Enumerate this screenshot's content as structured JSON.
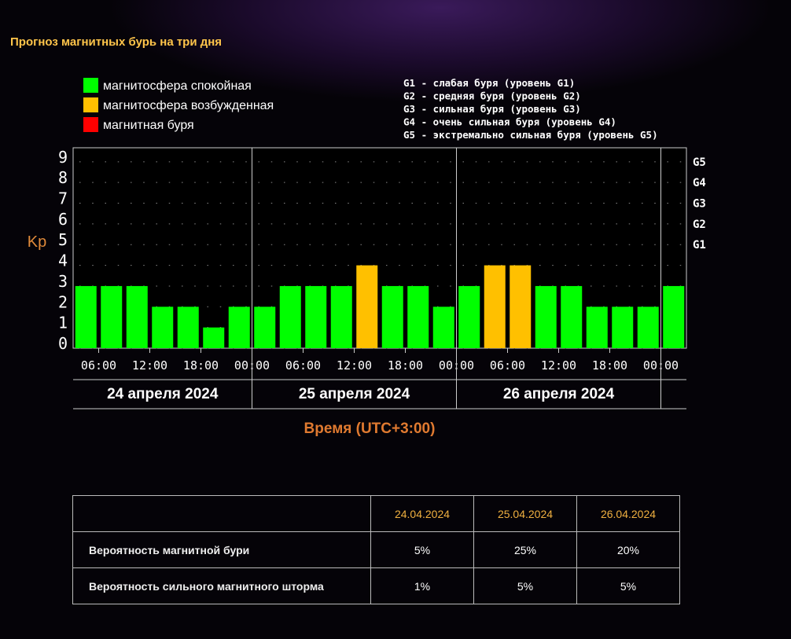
{
  "title": "Прогноз магнитных бурь на три дня",
  "chart_data": {
    "type": "bar",
    "legend": [
      {
        "label": "магнитосфера спокойная",
        "color": "#00ff00"
      },
      {
        "label": "магнитосфера возбужденная",
        "color": "#ffc000"
      },
      {
        "label": "магнитная буря",
        "color": "#ff0000"
      }
    ],
    "g_legend": [
      "G1 - слабая буря (уровень G1)",
      "G2 - средняя буря (уровень G2)",
      "G3 - сильная буря (уровень G3)",
      "G4 - очень сильная буря (уровень G4)",
      "G5 - экстремально сильная буря (уровень G5)"
    ],
    "y_label": "Kp",
    "x_label": "Время (UTC+3:00)",
    "categories": [
      null,
      null,
      null,
      null,
      null,
      null,
      null,
      null,
      null,
      null,
      null,
      null,
      null,
      null,
      null,
      null,
      null,
      null,
      null,
      null,
      null,
      null,
      null,
      null
    ],
    "values": [
      3,
      3,
      3,
      2,
      2,
      1,
      2,
      2,
      3,
      3,
      3,
      4,
      3,
      3,
      2,
      3,
      4,
      4,
      3,
      3,
      2,
      2,
      2,
      3
    ],
    "bar_colors": [
      "#00ff00",
      "#00ff00",
      "#00ff00",
      "#00ff00",
      "#00ff00",
      "#00ff00",
      "#00ff00",
      "#00ff00",
      "#00ff00",
      "#00ff00",
      "#00ff00",
      "#ffc000",
      "#00ff00",
      "#00ff00",
      "#00ff00",
      "#00ff00",
      "#ffc000",
      "#ffc000",
      "#00ff00",
      "#00ff00",
      "#00ff00",
      "#00ff00",
      "#00ff00",
      "#00ff00"
    ],
    "xtick_labels": [
      "06:00",
      "12:00",
      "18:00",
      "00:00",
      "06:00",
      "12:00",
      "18:00",
      "00:00",
      "06:00",
      "12:00",
      "18:00",
      "00:00"
    ],
    "days": [
      "24 апреля 2024",
      "25 апреля 2024",
      "26 апреля 2024"
    ],
    "ylim": [
      0,
      9.6
    ],
    "yticks": [
      0,
      1,
      2,
      3,
      4,
      5,
      6,
      7,
      8,
      9
    ],
    "y2ticks": [
      {
        "value": 5,
        "label": "G1"
      },
      {
        "value": 6,
        "label": "G2"
      },
      {
        "value": 7,
        "label": "G3"
      },
      {
        "value": 8,
        "label": "G4"
      },
      {
        "value": 9,
        "label": "G5"
      }
    ],
    "grid": true
  },
  "table": {
    "header": [
      "24.04.2024",
      "25.04.2024",
      "26.04.2024"
    ],
    "rows": [
      [
        "Вероятность магнитной бури",
        "5%",
        "25%",
        "20%"
      ],
      [
        "Вероятность сильного магнитного шторма",
        "1%",
        "5%",
        "5%"
      ]
    ]
  }
}
